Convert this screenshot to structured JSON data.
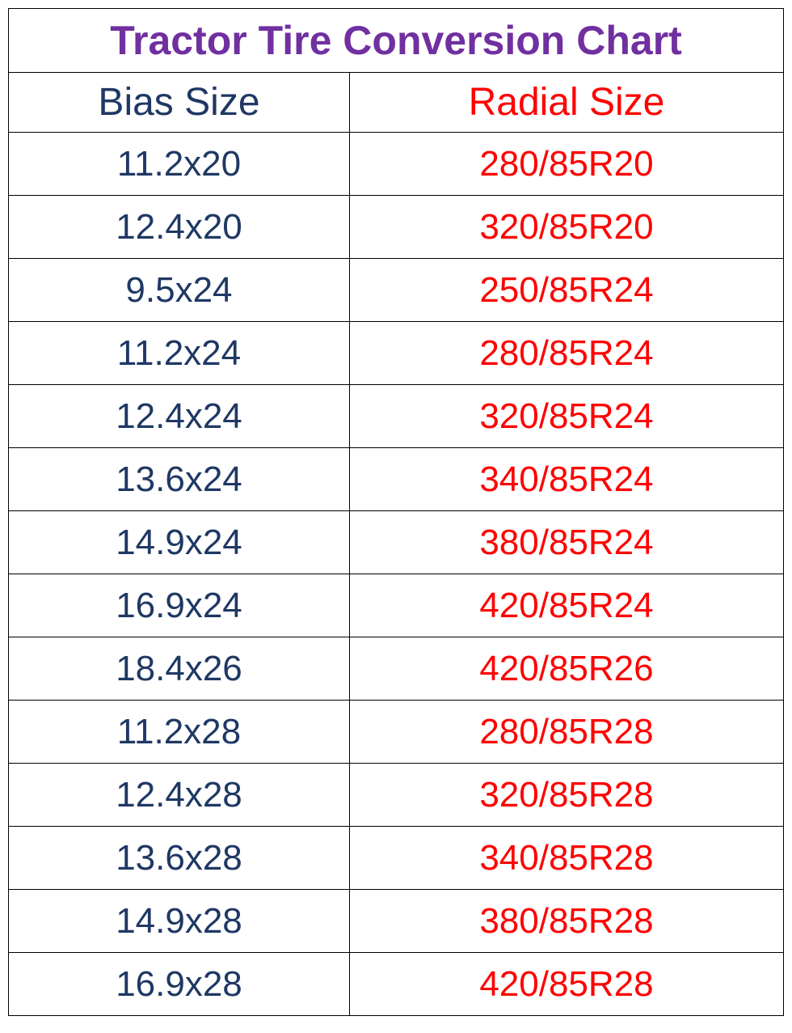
{
  "table": {
    "type": "table",
    "title": "Tractor Tire Conversion Chart",
    "title_color": "#7030a0",
    "title_fontsize": 50,
    "title_fontweight": "bold",
    "columns": [
      {
        "label": "Bias Size",
        "color": "#1f3864",
        "width_percent": 44,
        "align": "center"
      },
      {
        "label": "Radial Size",
        "color": "#ff0000",
        "width_percent": 56,
        "align": "center"
      }
    ],
    "header_fontsize": 48,
    "data_fontsize": 44,
    "border_color": "#000000",
    "background_color": "#ffffff",
    "rows": [
      [
        "11.2x20",
        "280/85R20"
      ],
      [
        "12.4x20",
        "320/85R20"
      ],
      [
        "9.5x24",
        "250/85R24"
      ],
      [
        "11.2x24",
        "280/85R24"
      ],
      [
        "12.4x24",
        "320/85R24"
      ],
      [
        "13.6x24",
        "340/85R24"
      ],
      [
        "14.9x24",
        "380/85R24"
      ],
      [
        "16.9x24",
        "420/85R24"
      ],
      [
        "18.4x26",
        "420/85R26"
      ],
      [
        "11.2x28",
        "280/85R28"
      ],
      [
        "12.4x28",
        "320/85R28"
      ],
      [
        "13.6x28",
        "340/85R28"
      ],
      [
        "14.9x28",
        "380/85R28"
      ],
      [
        "16.9x28",
        "420/85R28"
      ]
    ]
  }
}
